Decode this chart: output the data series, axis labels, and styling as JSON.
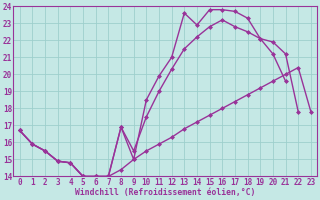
{
  "xlabel": "Windchill (Refroidissement éolien,°C)",
  "xlim_min": -0.5,
  "xlim_max": 23.5,
  "ylim_min": 14,
  "ylim_max": 24,
  "xticks": [
    0,
    1,
    2,
    3,
    4,
    5,
    6,
    7,
    8,
    9,
    10,
    11,
    12,
    13,
    14,
    15,
    16,
    17,
    18,
    19,
    20,
    21,
    22,
    23
  ],
  "yticks": [
    14,
    15,
    16,
    17,
    18,
    19,
    20,
    21,
    22,
    23,
    24
  ],
  "bg_color": "#c5e8e5",
  "line_color": "#993399",
  "grid_color": "#9ecfcc",
  "curve1_x": [
    0,
    1,
    2,
    3,
    4,
    5,
    6,
    7,
    8,
    9,
    10,
    11,
    12,
    13,
    14,
    15,
    16,
    17,
    18,
    19,
    20,
    21
  ],
  "curve1_y": [
    16.7,
    15.9,
    15.5,
    14.9,
    14.8,
    14.0,
    14.0,
    14.0,
    16.9,
    15.0,
    18.5,
    19.9,
    21.0,
    23.6,
    22.9,
    23.8,
    23.8,
    23.7,
    23.3,
    22.1,
    21.2,
    19.6
  ],
  "curve2_x": [
    0,
    1,
    2,
    3,
    4,
    5,
    6,
    7,
    8,
    9,
    10,
    11,
    12,
    13,
    14,
    15,
    16,
    17,
    18,
    19,
    20,
    21,
    22
  ],
  "curve2_y": [
    16.7,
    15.9,
    15.5,
    14.9,
    14.8,
    14.0,
    14.0,
    14.0,
    16.9,
    15.5,
    17.5,
    19.0,
    20.3,
    21.5,
    22.2,
    22.8,
    23.2,
    22.8,
    22.5,
    22.1,
    21.9,
    21.2,
    17.8
  ],
  "curve3_x": [
    0,
    1,
    2,
    3,
    4,
    5,
    6,
    7,
    8,
    9,
    10,
    11,
    12,
    13,
    14,
    15,
    16,
    17,
    18,
    19,
    20,
    21,
    22,
    23
  ],
  "curve3_y": [
    16.7,
    15.9,
    15.5,
    14.9,
    14.8,
    14.0,
    14.0,
    14.0,
    14.4,
    15.0,
    15.5,
    15.9,
    16.3,
    16.8,
    17.2,
    17.6,
    18.0,
    18.4,
    18.8,
    19.2,
    19.6,
    20.0,
    20.4,
    17.8
  ],
  "marker": "D",
  "markersize": 2.0,
  "linewidth": 1.0,
  "tick_fontsize": 5.5,
  "xlabel_fontsize": 5.8
}
